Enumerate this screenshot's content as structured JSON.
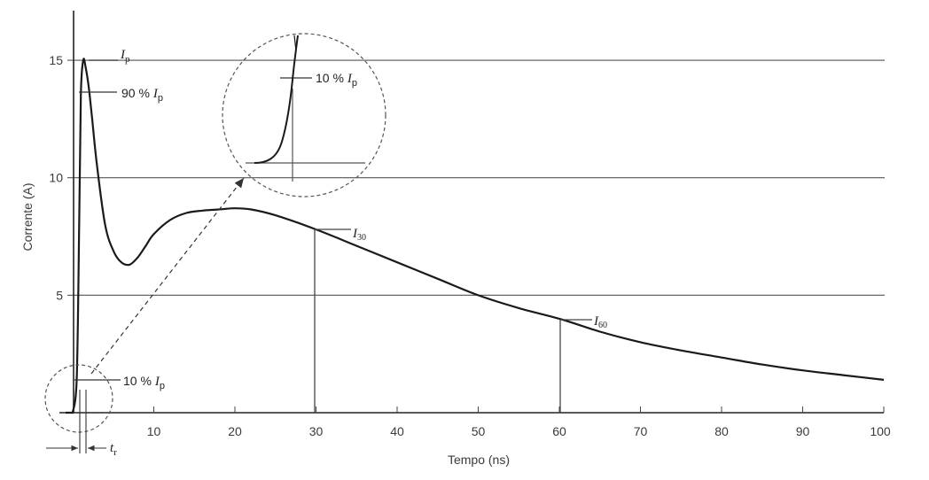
{
  "chart_data": {
    "type": "line",
    "title": "",
    "xlabel": "Tempo (ns)",
    "ylabel": "Corrente (A)",
    "xlim": [
      -3,
      100
    ],
    "ylim": [
      0,
      17
    ],
    "x_ticks": [
      10,
      20,
      30,
      40,
      50,
      60,
      70,
      80,
      90,
      100
    ],
    "y_ticks": [
      5,
      10,
      15
    ],
    "grid": "horizontal lines at 5, 10, 15",
    "series": [
      {
        "x": [
          0,
          0.5,
          0.8,
          1.0,
          1.3,
          1.6,
          2.0,
          2.4,
          3,
          4,
          5,
          6,
          7,
          8,
          9,
          10,
          12,
          14,
          16,
          18,
          20,
          22,
          25,
          30,
          35,
          40,
          45,
          50,
          55,
          60,
          65,
          70,
          75,
          80,
          85,
          90,
          95,
          100
        ],
        "y": [
          0,
          1.5,
          8,
          13.5,
          15,
          14.7,
          13.8,
          12.5,
          10.5,
          8.0,
          6.9,
          6.4,
          6.3,
          6.6,
          7.1,
          7.6,
          8.2,
          8.5,
          8.6,
          8.65,
          8.7,
          8.65,
          8.4,
          7.8,
          7.1,
          6.4,
          5.7,
          5.0,
          4.45,
          4.0,
          3.45,
          3.0,
          2.65,
          2.35,
          2.05,
          1.8,
          1.6,
          1.4
        ]
      }
    ],
    "annotations": {
      "ip": {
        "label": "I",
        "sub": "p",
        "value": 15
      },
      "p90": {
        "label": "90 % ",
        "ital": "I",
        "sub": "p"
      },
      "p10": {
        "label": "10 % ",
        "ital": "I",
        "sub": "p"
      },
      "zoom_p10": {
        "label": "10 % ",
        "ital": "I",
        "sub": "p"
      },
      "i30": {
        "label": "I",
        "sub": "30",
        "x": 30,
        "value": 7.8
      },
      "i60": {
        "label": "I",
        "sub": "60",
        "x": 60,
        "value": 4.0
      },
      "tr": {
        "label": "t",
        "sub": "r"
      }
    }
  }
}
